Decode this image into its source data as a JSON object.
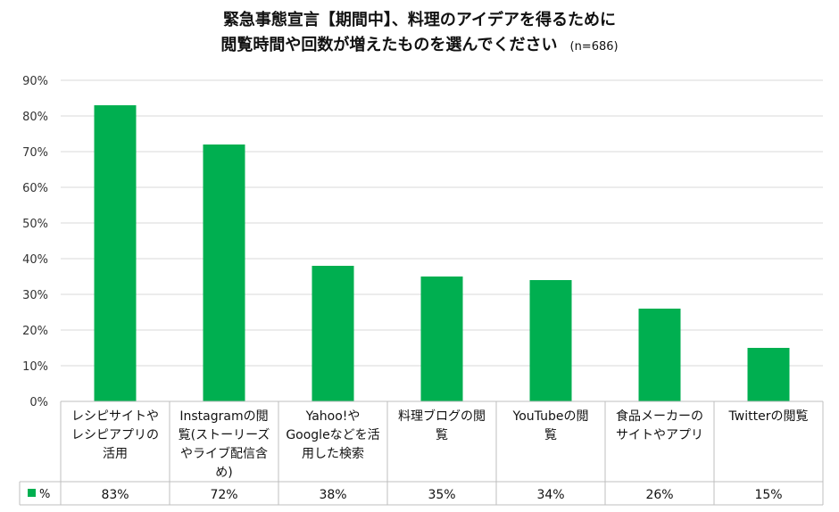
{
  "chart_data": {
    "type": "bar",
    "title_line1": "緊急事態宣言【期間中】、料理のアイデアを得るために",
    "title_line2": "閲覧時間や回数が増えたものを選んでください",
    "sample_note": "(n=686)",
    "categories": [
      [
        "レシピサイトや",
        "レシピアプリの",
        "活用"
      ],
      [
        "Instagramの閲",
        "覧(ストーリーズ",
        "やライブ配信含",
        "め)"
      ],
      [
        "Yahoo!や",
        "Googleなどを活",
        "用した検索"
      ],
      [
        "料理ブログの閲",
        "覧"
      ],
      [
        "YouTubeの閲",
        "覧"
      ],
      [
        "食品メーカーの",
        "サイトやアプリ"
      ],
      [
        "Twitterの閲覧"
      ]
    ],
    "values": [
      83,
      72,
      38,
      35,
      34,
      26,
      15
    ],
    "value_labels": [
      "83%",
      "72%",
      "38%",
      "35%",
      "34%",
      "26%",
      "15%"
    ],
    "series_name": "%",
    "y_ticks": [
      "0%",
      "10%",
      "20%",
      "30%",
      "40%",
      "50%",
      "60%",
      "70%",
      "80%",
      "90%"
    ],
    "ylim": [
      0,
      90
    ],
    "bar_color": "#00AF50",
    "grid": true
  }
}
